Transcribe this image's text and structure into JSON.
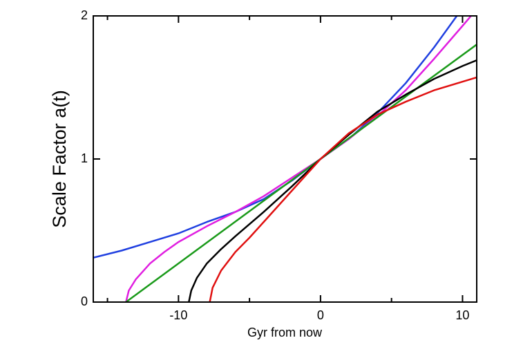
{
  "chart_data": {
    "type": "line",
    "x_label": "Gyr from now",
    "y_label": "Scale Factor a(t)",
    "xlim": [
      -16,
      11
    ],
    "ylim": [
      0,
      2
    ],
    "xticks": [
      -10,
      0,
      10
    ],
    "xminor_ticks": [
      -15,
      -5,
      5
    ],
    "yticks": [
      0,
      1,
      2
    ],
    "series": [
      {
        "color": "#1f3fe0",
        "x": [
          -16,
          -14,
          -12,
          -10,
          -8,
          -6,
          -4,
          -2,
          0,
          2,
          4,
          6,
          8,
          9.6
        ],
        "values": [
          0.31,
          0.36,
          0.42,
          0.48,
          0.56,
          0.63,
          0.72,
          0.85,
          1,
          1.14,
          1.32,
          1.53,
          1.78,
          2.0
        ]
      },
      {
        "color": "#e01ee0",
        "x": [
          -13.7,
          -13.5,
          -13,
          -12,
          -11,
          -10,
          -8,
          -6,
          -4,
          -2,
          0,
          2,
          4,
          6,
          8,
          10,
          10.6
        ],
        "values": [
          0,
          0.08,
          0.16,
          0.27,
          0.35,
          0.42,
          0.53,
          0.63,
          0.74,
          0.87,
          1,
          1.14,
          1.3,
          1.48,
          1.7,
          1.93,
          2.0
        ]
      },
      {
        "color": "#1a9a1a",
        "x": [
          -13.7,
          0,
          11
        ],
        "values": [
          0,
          1,
          1.8
        ]
      },
      {
        "color": "#000000",
        "x": [
          -9.27,
          -9.1,
          -8.7,
          -8,
          -7,
          -6,
          -4,
          -2,
          0,
          2,
          4,
          6,
          8,
          10,
          11
        ],
        "values": [
          0,
          0.08,
          0.17,
          0.27,
          0.37,
          0.46,
          0.63,
          0.81,
          1,
          1.17,
          1.33,
          1.45,
          1.56,
          1.65,
          1.69
        ]
      },
      {
        "color": "#e01010",
        "x": [
          -7.8,
          -7.6,
          -7,
          -6,
          -5,
          -4,
          -2,
          0,
          2,
          4,
          6,
          8,
          10,
          11
        ],
        "values": [
          0,
          0.1,
          0.22,
          0.35,
          0.45,
          0.56,
          0.78,
          1,
          1.18,
          1.31,
          1.4,
          1.48,
          1.54,
          1.57
        ]
      }
    ]
  }
}
